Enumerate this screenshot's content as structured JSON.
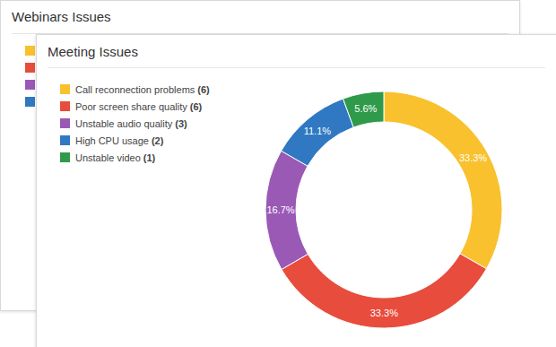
{
  "background_card": {
    "title": "Webinars Issues",
    "legend_colors": [
      "#f9c12d",
      "#e84c3d",
      "#9b59b6",
      "#3079c2"
    ]
  },
  "chart_data": {
    "type": "pie",
    "title": "Meeting Issues",
    "categories": [
      "Call reconnection problems",
      "Poor screen share quality",
      "Unstable audio quality",
      "High CPU usage",
      "Unstable video"
    ],
    "count_labels": [
      "(6)",
      "(6)",
      "(3)",
      "(2)",
      "(1)"
    ],
    "values": [
      33.3,
      33.3,
      16.7,
      11.1,
      5.6
    ],
    "value_labels": [
      "33.3%",
      "33.3%",
      "16.7%",
      "11.1%",
      "5.6%"
    ],
    "colors": [
      "#f9c12d",
      "#e84c3d",
      "#9b59b6",
      "#3079c2",
      "#2e9a4a"
    ],
    "data_labels": true,
    "legend": "left"
  }
}
